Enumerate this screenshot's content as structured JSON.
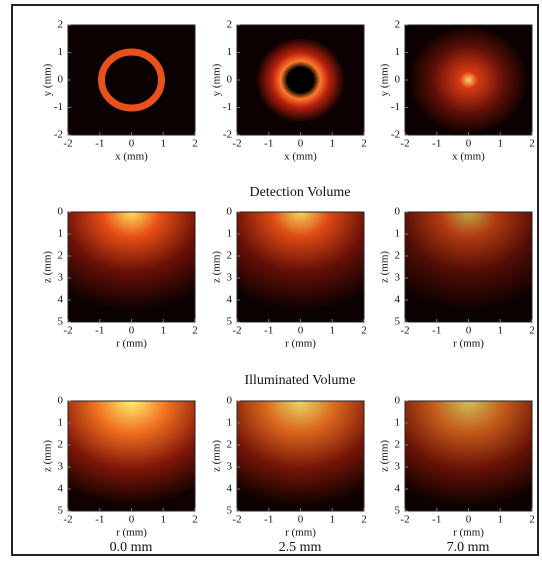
{
  "chart_data": [
    {
      "type": "heatmap",
      "xlabel": "x (mm)",
      "ylabel": "y (mm)",
      "xlim": [
        -2,
        2
      ],
      "ylim": [
        -2,
        2
      ],
      "xticks": [
        -2,
        -1,
        0,
        1,
        2
      ],
      "yticks": [
        -2,
        -1,
        0,
        1,
        2
      ]
    },
    {
      "type": "heatmap",
      "xlabel": "x (mm)",
      "ylabel": "y (mm)",
      "xlim": [
        -2,
        2
      ],
      "ylim": [
        -2,
        2
      ],
      "xticks": [
        -2,
        -1,
        0,
        1,
        2
      ],
      "yticks": [
        -2,
        -1,
        0,
        1,
        2
      ]
    },
    {
      "type": "heatmap",
      "xlabel": "x (mm)",
      "ylabel": "y (mm)",
      "xlim": [
        -2,
        2
      ],
      "ylim": [
        -2,
        2
      ],
      "xticks": [
        -2,
        -1,
        0,
        1,
        2
      ],
      "yticks": [
        -2,
        -1,
        0,
        1,
        2
      ]
    },
    {
      "type": "heatmap",
      "xlabel": "r (mm)",
      "ylabel": "z (mm)",
      "xlim": [
        -2,
        2
      ],
      "ylim": [
        5,
        0
      ],
      "xticks": [
        -2,
        -1,
        0,
        1,
        2
      ],
      "yticks": [
        0,
        1,
        2,
        3,
        4,
        5
      ]
    },
    {
      "type": "heatmap",
      "xlabel": "r (mm)",
      "ylabel": "z (mm)",
      "xlim": [
        -2,
        2
      ],
      "ylim": [
        5,
        0
      ],
      "xticks": [
        -2,
        -1,
        0,
        1,
        2
      ],
      "yticks": [
        0,
        1,
        2,
        3,
        4,
        5
      ]
    },
    {
      "type": "heatmap",
      "xlabel": "r (mm)",
      "ylabel": "z (mm)",
      "xlim": [
        -2,
        2
      ],
      "ylim": [
        5,
        0
      ],
      "xticks": [
        -2,
        -1,
        0,
        1,
        2
      ],
      "yticks": [
        0,
        1,
        2,
        3,
        4,
        5
      ]
    },
    {
      "type": "heatmap",
      "xlabel": "r (mm)",
      "ylabel": "z (mm)",
      "xlim": [
        -2,
        2
      ],
      "ylim": [
        5,
        0
      ],
      "xticks": [
        -2,
        -1,
        0,
        1,
        2
      ],
      "yticks": [
        0,
        1,
        2,
        3,
        4,
        5
      ]
    },
    {
      "type": "heatmap",
      "xlabel": "r (mm)",
      "ylabel": "z (mm)",
      "xlim": [
        -2,
        2
      ],
      "ylim": [
        5,
        0
      ],
      "xticks": [
        -2,
        -1,
        0,
        1,
        2
      ],
      "yticks": [
        0,
        1,
        2,
        3,
        4,
        5
      ]
    },
    {
      "type": "heatmap",
      "xlabel": "r (mm)",
      "ylabel": "z (mm)",
      "xlim": [
        -2,
        2
      ],
      "ylim": [
        5,
        0
      ],
      "xticks": [
        -2,
        -1,
        0,
        1,
        2
      ],
      "yticks": [
        0,
        1,
        2,
        3,
        4,
        5
      ]
    }
  ],
  "section_titles": [
    "Detection Volume",
    "Illuminated Volume"
  ],
  "captions": [
    "0.0 mm",
    "2.5 mm",
    "7.0 mm"
  ]
}
